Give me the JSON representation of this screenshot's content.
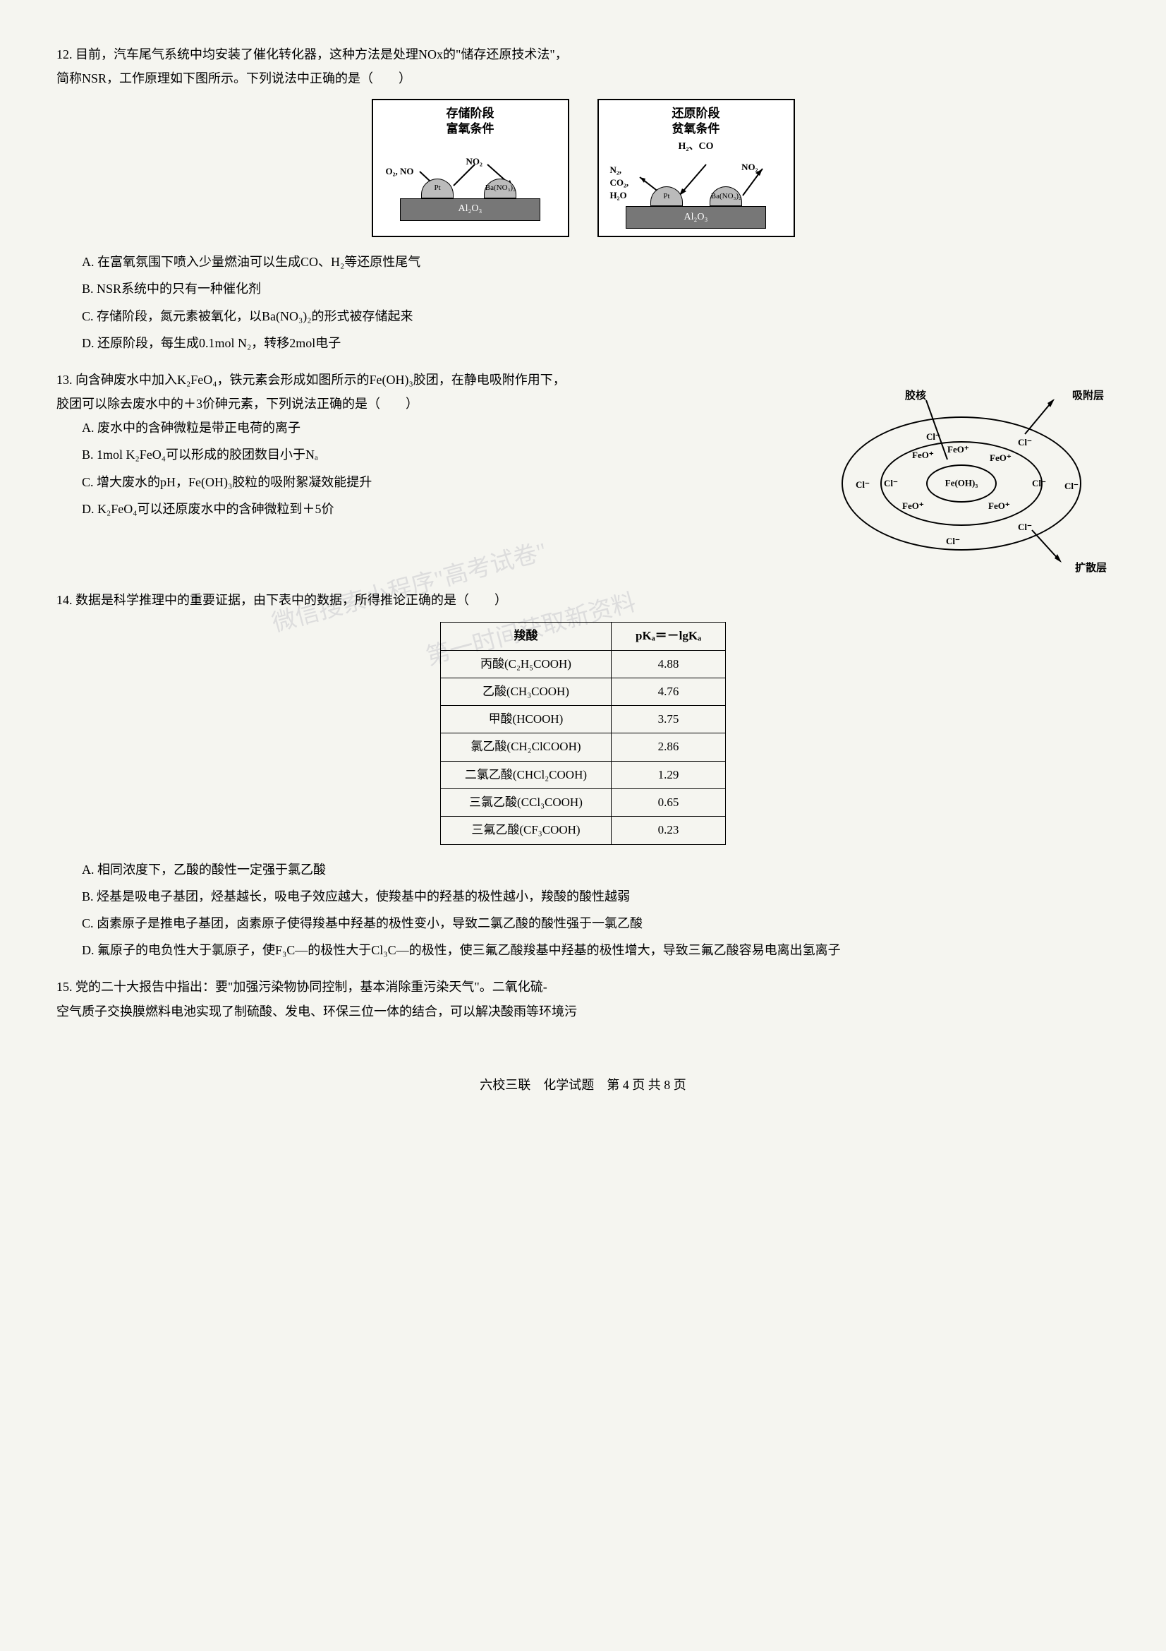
{
  "q12": {
    "stem1": "12. 目前，汽车尾气系统中均安装了催化转化器，这种方法是处理NOx的\"储存还原技术法\"，",
    "stem2": "简称NSR，工作原理如下图所示。下列说法中正确的是（　　）",
    "diag_left": {
      "title1": "存储阶段",
      "title2": "富氧条件",
      "in1": "O₂, NO",
      "mid": "NO₂",
      "bump_left": "Pt",
      "bump_right": "Ba(NO₃)₂",
      "substrate": "Al₂O₃"
    },
    "diag_right": {
      "title1": "还原阶段",
      "title2": "贫氧条件",
      "subtitle": "H₂、CO",
      "out1": "N₂,",
      "out2": "CO₂,",
      "out3": "H₂O",
      "mid": "NO₂",
      "bump_left": "Pt",
      "bump_right": "Ba(NO₃)₂",
      "substrate": "Al₂O₃"
    },
    "optA": "A. 在富氧氛围下喷入少量燃油可以生成CO、H₂等还原性尾气",
    "optB": "B. NSR系统中的只有一种催化剂",
    "optC": "C. 存储阶段，氮元素被氧化，以Ba(NO₃)₂的形式被存储起来",
    "optD": "D. 还原阶段，每生成0.1mol N₂，转移2mol电子"
  },
  "q13": {
    "stem1": "13. 向含砷废水中加入K₂FeO₄，铁元素会形成如图所示的Fe(OH)₃胶团，在静电吸附作用下，",
    "stem2": "胶团可以除去废水中的＋3价砷元素，下列说法正确的是（　　）",
    "optA": "A. 废水中的含砷微粒是带正电荷的离子",
    "optB": "B. 1mol K₂FeO₄可以形成的胶团数目小于Nₐ",
    "optC": "C. 增大废水的pH，Fe(OH)₃胶粒的吸附絮凝效能提升",
    "optD": "D. K₂FeO₄可以还原废水中的含砷微粒到＋5价",
    "diagram": {
      "label_core": "胶核",
      "label_adsorb": "吸附层",
      "label_diffuse": "扩散层",
      "center": "Fe(OH)₃",
      "ion_pos": "FeO⁺",
      "ion_neg": "Cl⁻"
    }
  },
  "q14": {
    "stem": "14. 数据是科学推理中的重要证据，由下表中的数据，所得推论正确的是（　　）",
    "table": {
      "headers": [
        "羧酸",
        "pKₐ＝－lgKₐ"
      ],
      "rows": [
        [
          "丙酸(C₂H₅COOH)",
          "4.88"
        ],
        [
          "乙酸(CH₃COOH)",
          "4.76"
        ],
        [
          "甲酸(HCOOH)",
          "3.75"
        ],
        [
          "氯乙酸(CH₂ClCOOH)",
          "2.86"
        ],
        [
          "二氯乙酸(CHCl₂COOH)",
          "1.29"
        ],
        [
          "三氯乙酸(CCl₃COOH)",
          "0.65"
        ],
        [
          "三氟乙酸(CF₃COOH)",
          "0.23"
        ]
      ]
    },
    "optA": "A. 相同浓度下，乙酸的酸性一定强于氯乙酸",
    "optB": "B. 烃基是吸电子基团，烃基越长，吸电子效应越大，使羧基中的羟基的极性越小，羧酸的酸性越弱",
    "optC": "C. 卤素原子是推电子基团，卤素原子使得羧基中羟基的极性变小，导致二氯乙酸的酸性强于一氯乙酸",
    "optD": "D. 氟原子的电负性大于氯原子，使F₃C—的极性大于Cl₃C—的极性，使三氟乙酸羧基中羟基的极性增大，导致三氟乙酸容易电离出氢离子"
  },
  "q15": {
    "stem1": "15. 党的二十大报告中指出：要\"加强污染物协同控制，基本消除重污染天气\"。二氧化硫-",
    "stem2": "空气质子交换膜燃料电池实现了制硫酸、发电、环保三位一体的结合，可以解决酸雨等环境污"
  },
  "watermark": {
    "line1": "微信搜索小程序\"高考试卷\"",
    "line2": "第一时间获取新资料"
  },
  "footer": "六校三联　化学试题　第 4 页 共 8 页"
}
